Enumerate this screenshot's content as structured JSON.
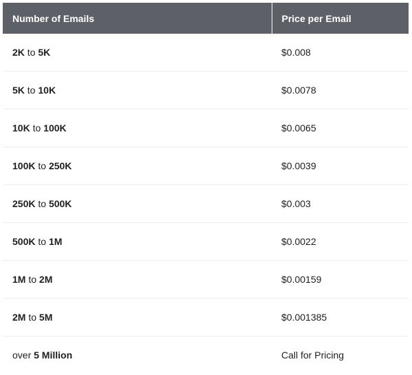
{
  "table": {
    "headers": [
      "Number of Emails",
      "Price per Email"
    ],
    "rows": [
      {
        "from": "2K",
        "sep": "to",
        "to": "5K",
        "price": "$0.008"
      },
      {
        "from": "5K",
        "sep": "to",
        "to": "10K",
        "price": "$0.0078"
      },
      {
        "from": "10K",
        "sep": "to",
        "to": "100K",
        "price": "$0.0065"
      },
      {
        "from": "100K",
        "sep": "to",
        "to": "250K",
        "price": "$0.0039"
      },
      {
        "from": "250K",
        "sep": "to",
        "to": "500K",
        "price": "$0.003"
      },
      {
        "from": "500K",
        "sep": "to",
        "to": "1M",
        "price": "$0.0022"
      },
      {
        "from": "1M",
        "sep": "to",
        "to": "2M",
        "price": "$0.00159"
      },
      {
        "from": "2M",
        "sep": "to",
        "to": "5M",
        "price": "$0.001385"
      },
      {
        "from": "over",
        "sep": "",
        "to": "5 Million",
        "price": "Call for Pricing"
      }
    ]
  }
}
